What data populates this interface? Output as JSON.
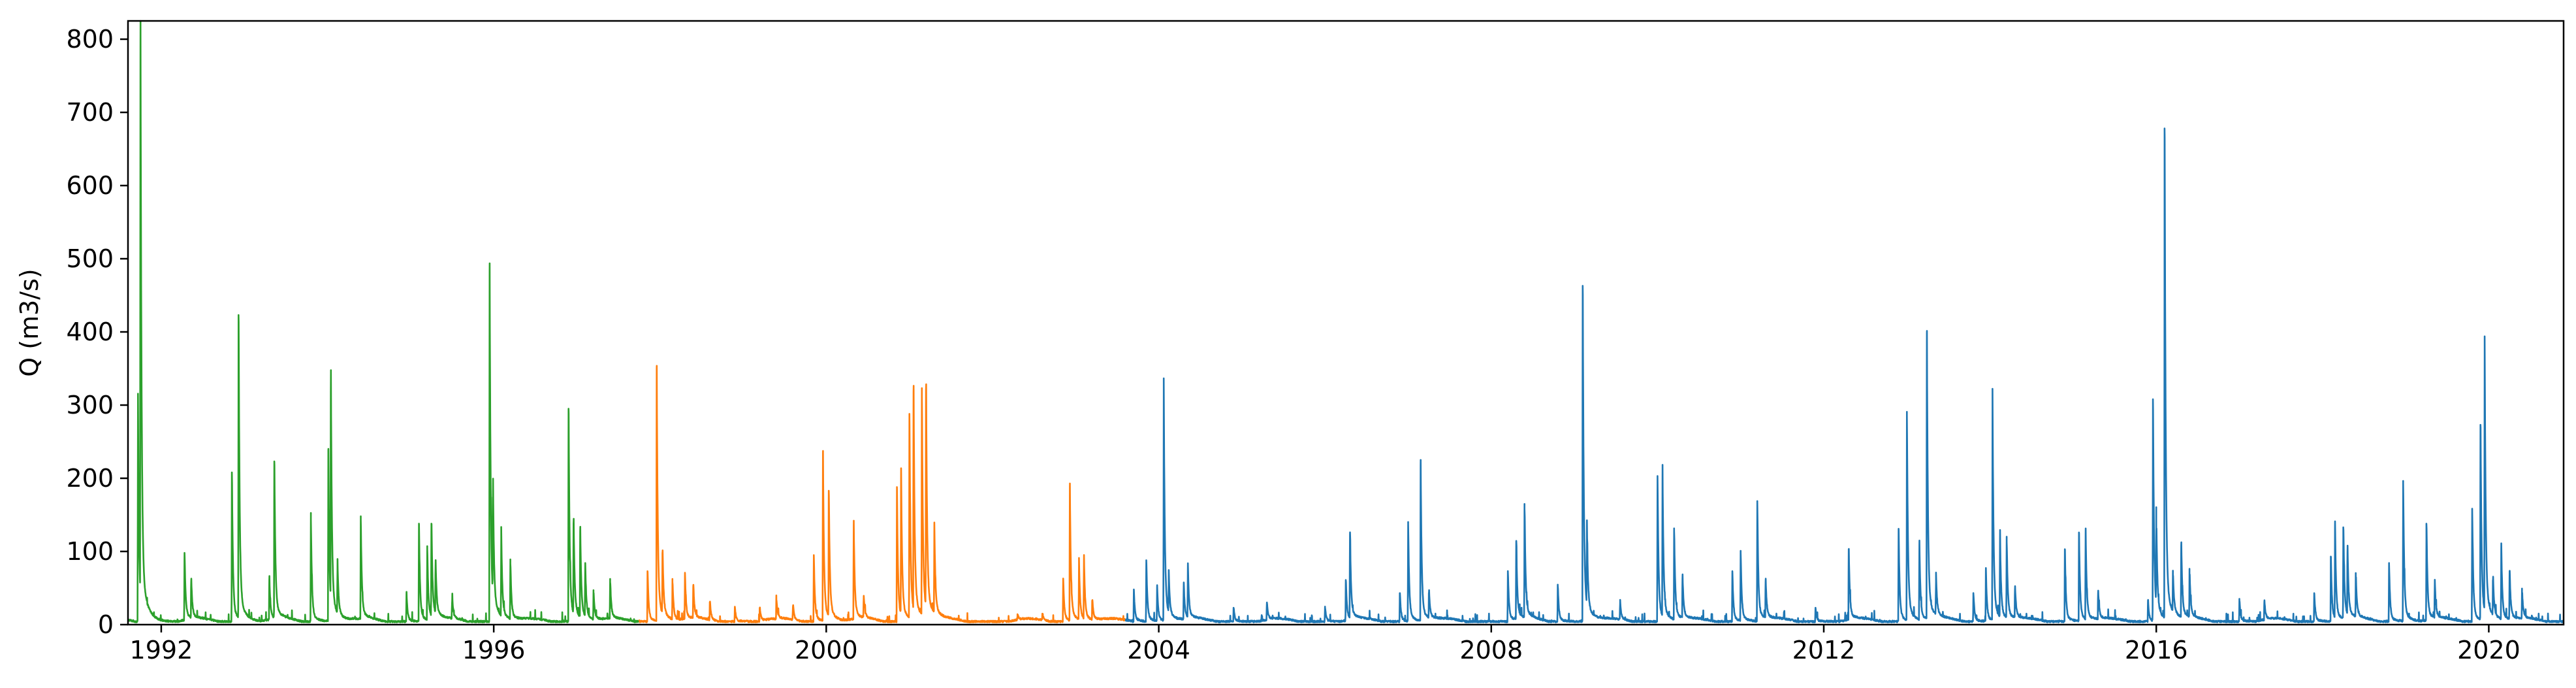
{
  "chart_data": {
    "type": "line",
    "title": "",
    "xlabel": "",
    "ylabel": "Q (m3/s)",
    "xlim": [
      1991.6,
      2020.9
    ],
    "ylim": [
      0,
      825
    ],
    "grid": false,
    "x_ticks": [
      1992,
      1996,
      2000,
      2004,
      2008,
      2012,
      2016,
      2020
    ],
    "x_tick_labels": [
      "1992",
      "1996",
      "2000",
      "2004",
      "2008",
      "2012",
      "2016",
      "2020"
    ],
    "y_ticks": [
      0,
      100,
      200,
      300,
      400,
      500,
      600,
      700,
      800
    ],
    "y_tick_labels": [
      "0",
      "100",
      "200",
      "300",
      "400",
      "500",
      "600",
      "700",
      "800"
    ],
    "series": [
      {
        "color": "#2ca02c",
        "range": [
          1991.6,
          1997.75
        ],
        "baseline": 3,
        "peaks": [
          [
            1991.72,
            300
          ],
          [
            1991.75,
            785
          ],
          [
            1992.28,
            95
          ],
          [
            1992.36,
            55
          ],
          [
            1992.85,
            205
          ],
          [
            1992.93,
            420
          ],
          [
            1993.3,
            58
          ],
          [
            1993.36,
            220
          ],
          [
            1993.8,
            140
          ],
          [
            1994.01,
            235
          ],
          [
            1994.04,
            315
          ],
          [
            1994.12,
            70
          ],
          [
            1994.4,
            140
          ],
          [
            1994.95,
            40
          ],
          [
            1995.1,
            135
          ],
          [
            1995.2,
            100
          ],
          [
            1995.25,
            135
          ],
          [
            1995.3,
            75
          ],
          [
            1995.5,
            30
          ],
          [
            1995.95,
            478
          ],
          [
            1995.99,
            170
          ],
          [
            1996.09,
            115
          ],
          [
            1996.2,
            80
          ],
          [
            1996.9,
            292
          ],
          [
            1996.96,
            135
          ],
          [
            1997.04,
            125
          ],
          [
            1997.1,
            75
          ],
          [
            1997.2,
            40
          ],
          [
            1997.4,
            55
          ]
        ]
      },
      {
        "color": "#ff7f0e",
        "range": [
          1997.75,
          2003.6
        ],
        "baseline": 3,
        "peaks": [
          [
            1997.85,
            70
          ],
          [
            1997.96,
            348
          ],
          [
            1998.03,
            95
          ],
          [
            1998.15,
            55
          ],
          [
            1998.3,
            62
          ],
          [
            1998.4,
            50
          ],
          [
            1998.6,
            28
          ],
          [
            1998.9,
            20
          ],
          [
            1999.2,
            20
          ],
          [
            1999.4,
            28
          ],
          [
            1999.6,
            22
          ],
          [
            1999.85,
            92
          ],
          [
            1999.96,
            232
          ],
          [
            2000.03,
            180
          ],
          [
            2000.33,
            132
          ],
          [
            2000.45,
            30
          ],
          [
            2000.85,
            185
          ],
          [
            2000.9,
            195
          ],
          [
            2001.0,
            285
          ],
          [
            2001.05,
            315
          ],
          [
            2001.15,
            310
          ],
          [
            2001.2,
            318
          ],
          [
            2001.3,
            120
          ],
          [
            2002.3,
            8
          ],
          [
            2002.6,
            10
          ],
          [
            2002.85,
            60
          ],
          [
            2002.93,
            185
          ],
          [
            2003.04,
            80
          ],
          [
            2003.1,
            85
          ],
          [
            2003.2,
            30
          ]
        ]
      },
      {
        "color": "#1f77b4",
        "range": [
          2003.6,
          2020.9
        ],
        "baseline": 3,
        "peaks": [
          [
            2003.7,
            45
          ],
          [
            2003.85,
            85
          ],
          [
            2003.98,
            48
          ],
          [
            2004.06,
            312
          ],
          [
            2004.12,
            55
          ],
          [
            2004.3,
            50
          ],
          [
            2004.35,
            72
          ],
          [
            2004.9,
            20
          ],
          [
            2005.3,
            25
          ],
          [
            2006.0,
            20
          ],
          [
            2006.25,
            58
          ],
          [
            2006.3,
            120
          ],
          [
            2006.9,
            40
          ],
          [
            2007.0,
            135
          ],
          [
            2007.15,
            215
          ],
          [
            2007.25,
            40
          ],
          [
            2008.2,
            70
          ],
          [
            2008.3,
            110
          ],
          [
            2008.4,
            155
          ],
          [
            2008.8,
            50
          ],
          [
            2009.1,
            460
          ],
          [
            2009.15,
            110
          ],
          [
            2009.55,
            25
          ],
          [
            2010.0,
            200
          ],
          [
            2010.06,
            195
          ],
          [
            2010.2,
            125
          ],
          [
            2010.3,
            60
          ],
          [
            2010.9,
            70
          ],
          [
            2011.0,
            95
          ],
          [
            2011.2,
            165
          ],
          [
            2011.3,
            55
          ],
          [
            2011.9,
            20
          ],
          [
            2012.3,
            100
          ],
          [
            2012.9,
            128
          ],
          [
            2013.0,
            283
          ],
          [
            2013.15,
            105
          ],
          [
            2013.24,
            395
          ],
          [
            2013.35,
            55
          ],
          [
            2013.8,
            40
          ],
          [
            2013.95,
            70
          ],
          [
            2014.03,
            295
          ],
          [
            2014.12,
            115
          ],
          [
            2014.2,
            110
          ],
          [
            2014.3,
            45
          ],
          [
            2014.9,
            100
          ],
          [
            2015.07,
            123
          ],
          [
            2015.15,
            122
          ],
          [
            2015.3,
            40
          ],
          [
            2015.9,
            30
          ],
          [
            2015.96,
            305
          ],
          [
            2016.0,
            120
          ],
          [
            2016.1,
            675
          ],
          [
            2016.2,
            55
          ],
          [
            2016.3,
            105
          ],
          [
            2016.4,
            65
          ],
          [
            2017.0,
            30
          ],
          [
            2017.3,
            28
          ],
          [
            2017.9,
            40
          ],
          [
            2018.1,
            90
          ],
          [
            2018.15,
            130
          ],
          [
            2018.25,
            130
          ],
          [
            2018.3,
            95
          ],
          [
            2018.4,
            60
          ],
          [
            2018.8,
            80
          ],
          [
            2018.97,
            190
          ],
          [
            2019.25,
            135
          ],
          [
            2019.35,
            50
          ],
          [
            2019.8,
            155
          ],
          [
            2019.9,
            270
          ],
          [
            2019.95,
            365
          ],
          [
            2020.05,
            55
          ],
          [
            2020.15,
            100
          ],
          [
            2020.25,
            70
          ],
          [
            2020.4,
            40
          ]
        ]
      }
    ]
  }
}
